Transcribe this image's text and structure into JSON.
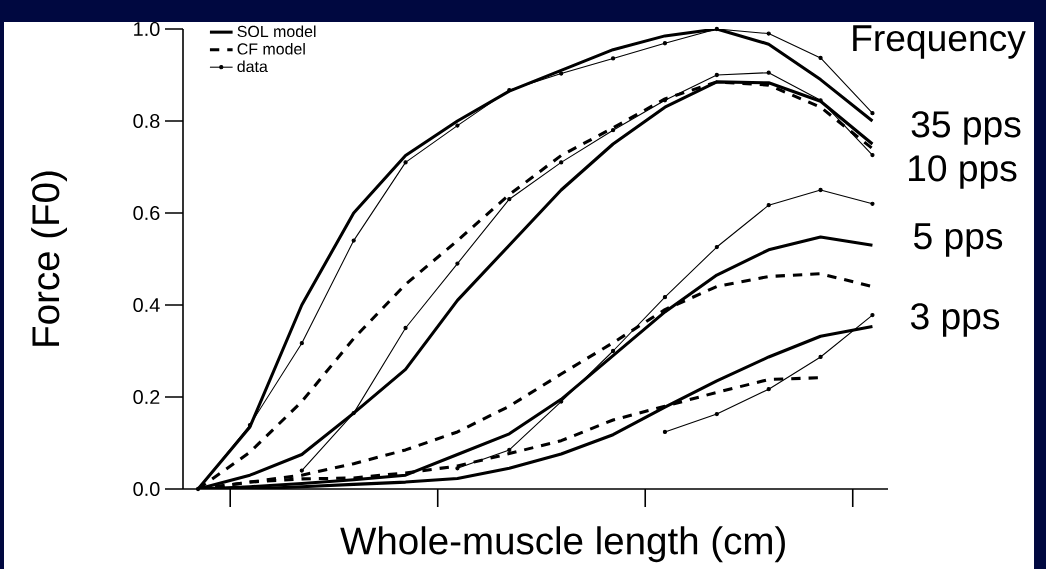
{
  "chart_data": {
    "type": "line",
    "xlabel": "Whole-muscle length (cm)",
    "ylabel": "Force (F0)",
    "categories": [
      null,
      null,
      null,
      null,
      null,
      null,
      null,
      null,
      null,
      null,
      null,
      null,
      null,
      null
    ],
    "ylim": [
      0,
      1.0
    ],
    "yticks": [
      {
        "value": 0,
        "label": "0.0"
      },
      {
        "value": 0.2,
        "label": "0.2"
      },
      {
        "value": 0.4,
        "label": "0.4"
      },
      {
        "value": 0.6,
        "label": "0.6"
      },
      {
        "value": 0.8,
        "label": "0.8"
      },
      {
        "value": 1.0,
        "label": "1.0"
      }
    ],
    "tick_labels": "y",
    "legend": "top left",
    "annotations": [
      "Frequency",
      "35 pps",
      "10 pps",
      "5 pps",
      "3 pps"
    ],
    "series": [
      {
        "name": "SOL model",
        "color": "#000000",
        "line_style": "solid",
        "marker": "none",
        "values": [
          0,
          0.135,
          0.4,
          0.6,
          0.725,
          0.8,
          0.865,
          0.91,
          0.955,
          0.985,
          1.0,
          0.967,
          0.89,
          0.8
        ]
      },
      {
        "name": "CF model",
        "color": "#000000",
        "line_style": "dashed",
        "marker": "none",
        "values": [
          0,
          0.08,
          0.19,
          0.327,
          0.445,
          0.54,
          0.64,
          0.725,
          0.785,
          0.848,
          0.885,
          0.878,
          0.83,
          0.74
        ]
      },
      {
        "name": "data",
        "color": "#000000",
        "line_style": "solid",
        "marker": "circle",
        "values": [
          0,
          0.139,
          0.317,
          0.54,
          0.71,
          0.79,
          0.867,
          0.903,
          0.936,
          0.969,
          1.0,
          0.99,
          0.937,
          0.817
        ]
      },
      {
        "color": "#000000",
        "line_style": "solid",
        "marker": "none",
        "values": [
          0,
          0.03,
          0.075,
          0.165,
          0.26,
          0.41,
          0.53,
          0.65,
          0.75,
          0.83,
          0.885,
          0.883,
          0.843,
          0.75
        ]
      },
      {
        "color": "#000000",
        "line_style": "solid",
        "marker": "none",
        "values": [
          0,
          0.005,
          0.012,
          0.02,
          0.03,
          0.075,
          0.12,
          0.195,
          0.29,
          0.385,
          0.465,
          0.52,
          0.548,
          0.53
        ]
      },
      {
        "color": "#000000",
        "line_style": "solid",
        "marker": "none",
        "values": [
          0,
          0,
          0.005,
          0.01,
          0.015,
          0.023,
          0.045,
          0.076,
          0.118,
          0.178,
          0.235,
          0.287,
          0.332,
          0.353
        ]
      },
      {
        "color": "#000000",
        "line_style": "dashed",
        "marker": "none",
        "values": [
          0,
          0.015,
          0.03,
          0.055,
          0.085,
          0.124,
          0.18,
          0.25,
          0.318,
          0.39,
          0.44,
          0.462,
          0.468,
          0.44
        ]
      },
      {
        "color": "#000000",
        "line_style": "dashed",
        "marker": "none",
        "values": [
          0,
          0.015,
          0.022,
          0.024,
          0.035,
          0.05,
          0.077,
          0.105,
          0.15,
          0.18,
          0.21,
          0.238,
          0.242,
          null
        ]
      },
      {
        "color": "#000000",
        "line_style": "solid",
        "marker": "circle",
        "values": [
          null,
          null,
          0.04,
          0.165,
          0.35,
          0.49,
          0.63,
          0.71,
          0.78,
          0.845,
          0.9,
          0.905,
          0.845,
          0.726
        ]
      },
      {
        "color": "#000000",
        "line_style": "solid",
        "marker": "circle",
        "values": [
          null,
          null,
          null,
          null,
          null,
          0.045,
          0.085,
          0.19,
          0.3,
          0.417,
          0.526,
          0.617,
          0.65,
          0.62
        ]
      },
      {
        "color": "#000000",
        "line_style": "solid",
        "marker": "circle",
        "values": [
          null,
          null,
          null,
          null,
          null,
          null,
          null,
          null,
          null,
          0.124,
          0.163,
          0.217,
          0.287,
          0.378
        ]
      }
    ]
  }
}
